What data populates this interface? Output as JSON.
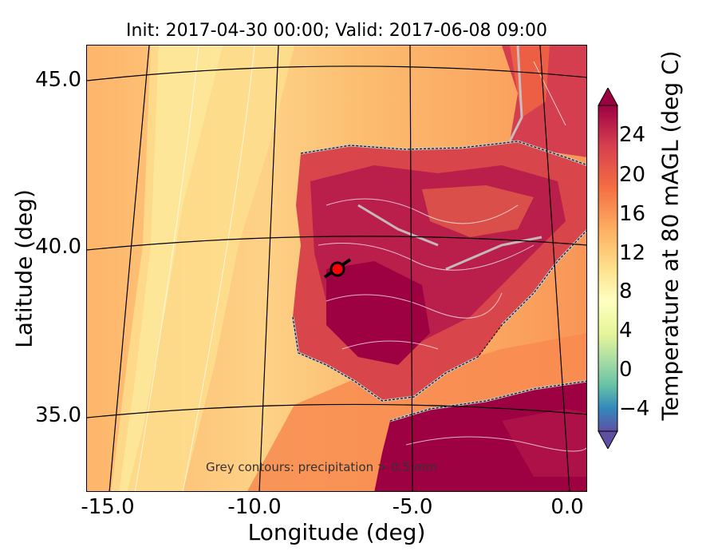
{
  "title": "Init: 2017-04-30 00:00; Valid: 2017-06-08 09:00",
  "map": {
    "xlabel": "Longitude (deg)",
    "ylabel": "Latitude (deg)",
    "x_ticks": [
      "-15.0",
      "-10.0",
      "-5.0",
      "0.0"
    ],
    "y_ticks": [
      "45.0",
      "40.0",
      "35.0"
    ],
    "annotation": "Grey contours: precipitation > 0.5 mm",
    "marker": {
      "label": "site-marker",
      "color": "#ff0000",
      "lon": -7.7,
      "lat": 39.4
    }
  },
  "colorbar": {
    "label": "Temperature at 80 mAGL (deg C)",
    "ticks": [
      "24",
      "20",
      "16",
      "12",
      "8",
      "4",
      "0",
      "−4"
    ],
    "colormap": "Spectral_r",
    "range": [
      -6,
      27
    ],
    "extend": "both"
  },
  "colors": {
    "hot": "#9e0142",
    "warm": "#f46d43",
    "mild": "#fdae61",
    "cool": "#fee08b",
    "precip_contour": "#c8c8c8",
    "temp_contour": "#ffffff"
  }
}
